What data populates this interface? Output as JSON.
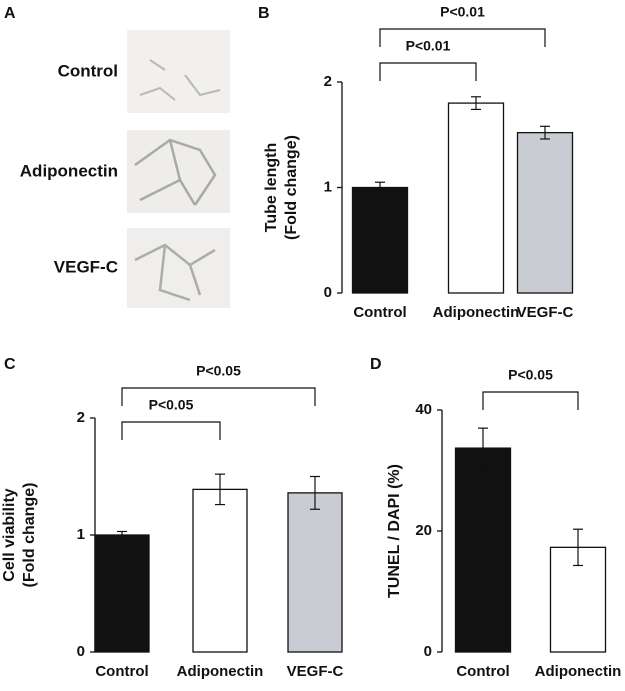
{
  "chart_data": [
    {
      "type": "image-grid",
      "panel": "A",
      "categories": [
        "Control",
        "Adiponectin",
        "VEGF-C"
      ]
    },
    {
      "type": "bar",
      "panel": "B",
      "ylabel": [
        "Tube length",
        "(Fold change)"
      ],
      "categories": [
        "Control",
        "Adiponectin",
        "VEGF-C"
      ],
      "values": [
        1.0,
        1.8,
        1.52
      ],
      "errors": [
        0.05,
        0.06,
        0.06
      ],
      "colors": [
        "#111111",
        "#ffffff",
        "#c9ccd3"
      ],
      "ylim": [
        0,
        2
      ],
      "yticks": [
        0,
        1,
        2
      ],
      "comparisons": [
        {
          "label": "P<0.01",
          "from": 0,
          "to": 1
        },
        {
          "label": "P<0.01",
          "from": 0,
          "to": 2
        }
      ]
    },
    {
      "type": "bar",
      "panel": "C",
      "ylabel": [
        "Cell viability",
        "(Fold change)"
      ],
      "categories": [
        "Control",
        "Adiponectin",
        "VEGF-C"
      ],
      "values": [
        1.0,
        1.39,
        1.36
      ],
      "errors": [
        0.03,
        0.13,
        0.14
      ],
      "colors": [
        "#111111",
        "#ffffff",
        "#c9ccd3"
      ],
      "ylim": [
        0,
        2
      ],
      "yticks": [
        0,
        1,
        2
      ],
      "comparisons": [
        {
          "label": "P<0.05",
          "from": 0,
          "to": 1
        },
        {
          "label": "P<0.05",
          "from": 0,
          "to": 2
        }
      ]
    },
    {
      "type": "bar",
      "panel": "D",
      "ylabel": [
        "TUNEL / DAPI (%)"
      ],
      "categories": [
        "Control",
        "Adiponectin"
      ],
      "values": [
        33.7,
        17.3
      ],
      "errors": [
        3.3,
        3.0
      ],
      "colors": [
        "#111111",
        "#ffffff"
      ],
      "ylim": [
        0,
        40
      ],
      "yticks": [
        0,
        20,
        40
      ],
      "comparisons": [
        {
          "label": "P<0.05",
          "from": 0,
          "to": 1
        }
      ]
    }
  ]
}
